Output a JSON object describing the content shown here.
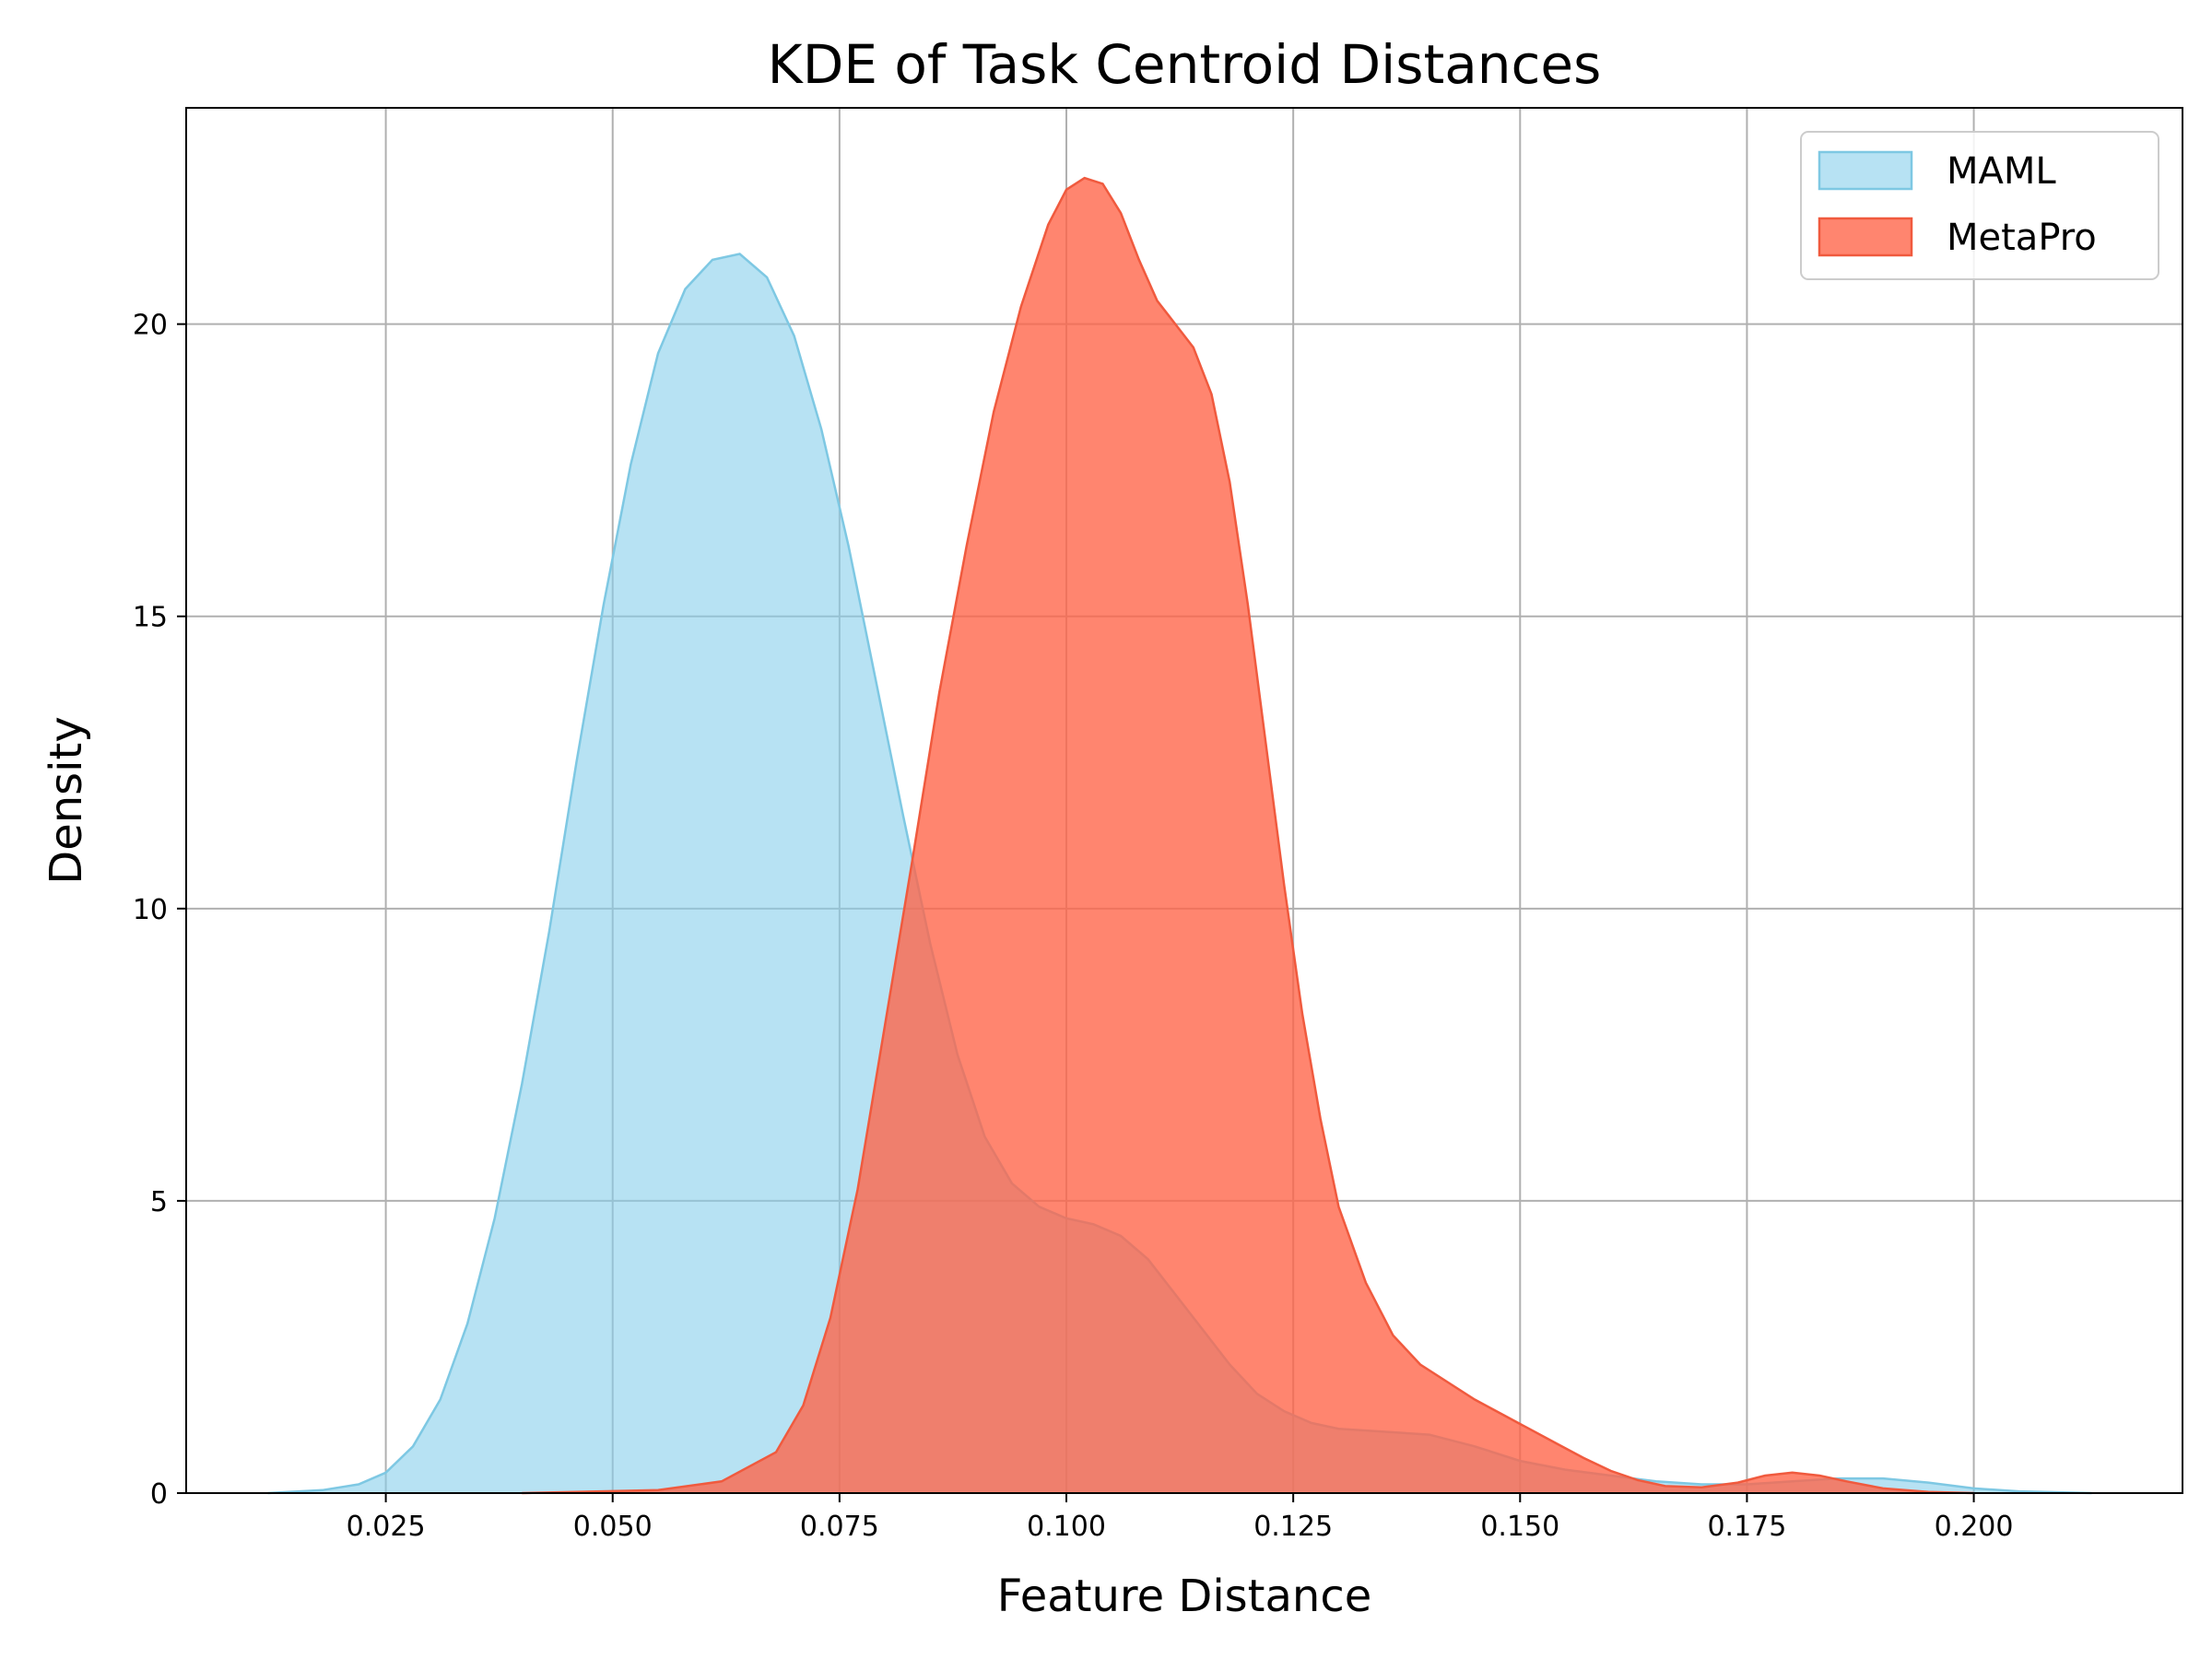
{
  "chart_data": {
    "type": "area",
    "title": "KDE of Task Centroid Distances",
    "xlabel": "Feature Distance",
    "ylabel": "Density",
    "xlim": [
      0.003,
      0.223
    ],
    "ylim": [
      0,
      23.7
    ],
    "xticks": [
      0.025,
      0.05,
      0.075,
      0.1,
      0.125,
      0.15,
      0.175,
      0.2
    ],
    "xtick_labels": [
      "0.025",
      "0.050",
      "0.075",
      "0.100",
      "0.125",
      "0.150",
      "0.175",
      "0.200"
    ],
    "yticks": [
      0,
      5,
      10,
      15,
      20
    ],
    "ytick_labels": [
      "0",
      "5",
      "10",
      "15",
      "20"
    ],
    "grid": true,
    "legend_position": "top-right",
    "series": [
      {
        "name": "MAML",
        "fill": "#87CEEB",
        "line": "#7EC8E3",
        "x": [
          0.012,
          0.018,
          0.022,
          0.025,
          0.028,
          0.031,
          0.034,
          0.037,
          0.04,
          0.043,
          0.046,
          0.049,
          0.052,
          0.055,
          0.058,
          0.061,
          0.064,
          0.067,
          0.07,
          0.073,
          0.076,
          0.079,
          0.082,
          0.085,
          0.088,
          0.091,
          0.094,
          0.097,
          0.1,
          0.103,
          0.106,
          0.109,
          0.112,
          0.115,
          0.118,
          0.121,
          0.124,
          0.127,
          0.13,
          0.135,
          0.14,
          0.145,
          0.15,
          0.155,
          0.16,
          0.165,
          0.17,
          0.175,
          0.18,
          0.185,
          0.19,
          0.195,
          0.2,
          0.205,
          0.213
        ],
        "y": [
          0.0,
          0.05,
          0.15,
          0.35,
          0.8,
          1.6,
          2.9,
          4.7,
          7.0,
          9.6,
          12.5,
          15.2,
          17.6,
          19.5,
          20.6,
          21.1,
          21.2,
          20.8,
          19.8,
          18.2,
          16.2,
          13.9,
          11.6,
          9.4,
          7.5,
          6.1,
          5.3,
          4.9,
          4.7,
          4.6,
          4.4,
          4.0,
          3.4,
          2.8,
          2.2,
          1.7,
          1.4,
          1.2,
          1.1,
          1.05,
          1.0,
          0.8,
          0.55,
          0.4,
          0.3,
          0.2,
          0.15,
          0.15,
          0.2,
          0.25,
          0.25,
          0.18,
          0.08,
          0.03,
          0.0
        ]
      },
      {
        "name": "MetaPro",
        "fill": "#FF6347",
        "line": "#F05A3E",
        "x": [
          0.04,
          0.055,
          0.062,
          0.068,
          0.071,
          0.074,
          0.077,
          0.08,
          0.083,
          0.086,
          0.089,
          0.092,
          0.095,
          0.098,
          0.1,
          0.102,
          0.104,
          0.106,
          0.108,
          0.11,
          0.112,
          0.114,
          0.116,
          0.118,
          0.12,
          0.122,
          0.124,
          0.126,
          0.128,
          0.13,
          0.133,
          0.136,
          0.139,
          0.142,
          0.145,
          0.148,
          0.151,
          0.154,
          0.157,
          0.16,
          0.163,
          0.166,
          0.17,
          0.174,
          0.177,
          0.18,
          0.183,
          0.186,
          0.19,
          0.195,
          0.2
        ],
        "y": [
          0.0,
          0.05,
          0.2,
          0.7,
          1.5,
          3.0,
          5.2,
          8.0,
          10.8,
          13.7,
          16.2,
          18.5,
          20.3,
          21.7,
          22.3,
          22.5,
          22.4,
          21.9,
          21.1,
          20.4,
          20.0,
          19.6,
          18.8,
          17.3,
          15.2,
          12.8,
          10.4,
          8.2,
          6.4,
          4.9,
          3.6,
          2.7,
          2.2,
          1.9,
          1.6,
          1.35,
          1.1,
          0.85,
          0.6,
          0.38,
          0.22,
          0.12,
          0.1,
          0.18,
          0.3,
          0.35,
          0.3,
          0.2,
          0.08,
          0.02,
          0.0
        ]
      }
    ]
  }
}
